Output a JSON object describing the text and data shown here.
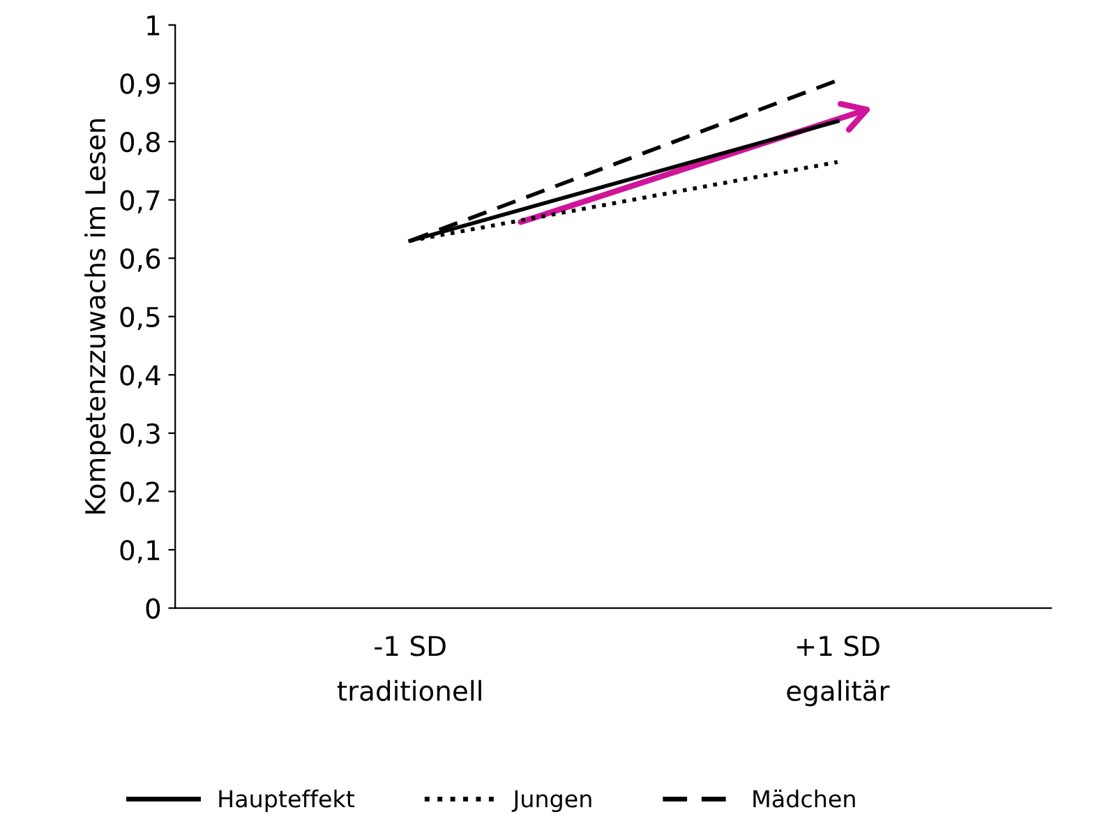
{
  "chart_data": {
    "type": "line",
    "ylabel": "Kompetenzzuwachs im Lesen",
    "categories": [
      "-1 SD\ntraditionell",
      "+1 SD\negalitär"
    ],
    "series": [
      {
        "name": "Haupteffekt",
        "color": "#000000",
        "values": [
          0.63,
          0.835
        ],
        "line_style": "solid"
      },
      {
        "name": "Jungen",
        "color": "#000000",
        "values": [
          0.63,
          0.765
        ],
        "line_style": "dotted"
      },
      {
        "name": "Mädchen",
        "color": "#000000",
        "values": [
          0.63,
          0.905
        ],
        "line_style": "dashed"
      }
    ],
    "ylim": [
      0,
      1
    ],
    "yticks": [
      {
        "value": 0,
        "label": "0"
      },
      {
        "value": 0.1,
        "label": "0,1"
      },
      {
        "value": 0.2,
        "label": "0,2"
      },
      {
        "value": 0.3,
        "label": "0,3"
      },
      {
        "value": 0.4,
        "label": "0,4"
      },
      {
        "value": 0.5,
        "label": "0,5"
      },
      {
        "value": 0.6,
        "label": "0,6"
      },
      {
        "value": 0.7,
        "label": "0,7"
      },
      {
        "value": 0.8,
        "label": "0,8"
      },
      {
        "value": 0.9,
        "label": "0,9"
      },
      {
        "value": 1,
        "label": "1"
      }
    ],
    "grid": false,
    "legend": "bottom"
  }
}
